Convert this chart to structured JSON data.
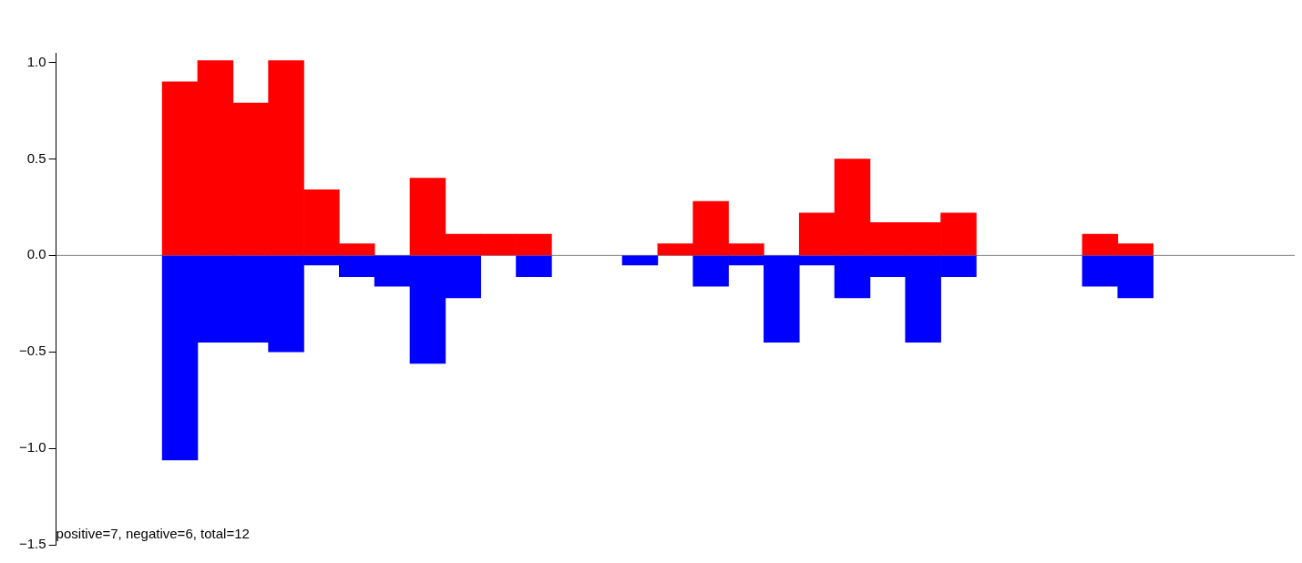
{
  "chart_data": {
    "type": "bar",
    "stacked": true,
    "categories": [
      null,
      null,
      null,
      null,
      null,
      null,
      null,
      null,
      null,
      null,
      null,
      null,
      null,
      null,
      null,
      null,
      null,
      null,
      null,
      null,
      null,
      null,
      null,
      null,
      null,
      null,
      null,
      null,
      null,
      null,
      null,
      null,
      null,
      null,
      null
    ],
    "series": [
      {
        "color": "#ff0000",
        "values": [
          null,
          null,
          null,
          0.9,
          1.01,
          0.79,
          1.01,
          0.34,
          0.06,
          null,
          0.4,
          0.11,
          0.11,
          0.11,
          null,
          null,
          null,
          0.06,
          0.28,
          0.06,
          null,
          0.22,
          0.5,
          0.17,
          0.17,
          0.22,
          null,
          null,
          null,
          0.11,
          0.06,
          null,
          null,
          null,
          null
        ]
      },
      {
        "color": "#0000ff",
        "values": [
          null,
          null,
          null,
          -1.06,
          -0.45,
          -0.45,
          -0.5,
          -0.05,
          -0.11,
          -0.16,
          -0.56,
          -0.22,
          null,
          -0.11,
          null,
          null,
          -0.05,
          null,
          -0.16,
          -0.05,
          -0.45,
          -0.05,
          -0.22,
          -0.11,
          -0.45,
          -0.11,
          null,
          null,
          null,
          -0.16,
          -0.22,
          null,
          null,
          null,
          null
        ]
      }
    ],
    "ylim": [
      -1.5,
      1.05
    ],
    "yticks": [
      {
        "value": -1.5,
        "label": "−1.5"
      },
      {
        "value": -1,
        "label": "−1.0"
      },
      {
        "value": -0.5,
        "label": "−0.5"
      },
      {
        "value": 0,
        "label": "0.0"
      },
      {
        "value": 0.5,
        "label": "0.5"
      },
      {
        "value": 1,
        "label": "1.0"
      }
    ],
    "ref_lines": [
      {
        "axis": "y",
        "value": 0,
        "color": "#808080"
      }
    ],
    "annotations": [
      "positive=7, negative=6, total=12"
    ],
    "grid": false,
    "legend": false
  }
}
